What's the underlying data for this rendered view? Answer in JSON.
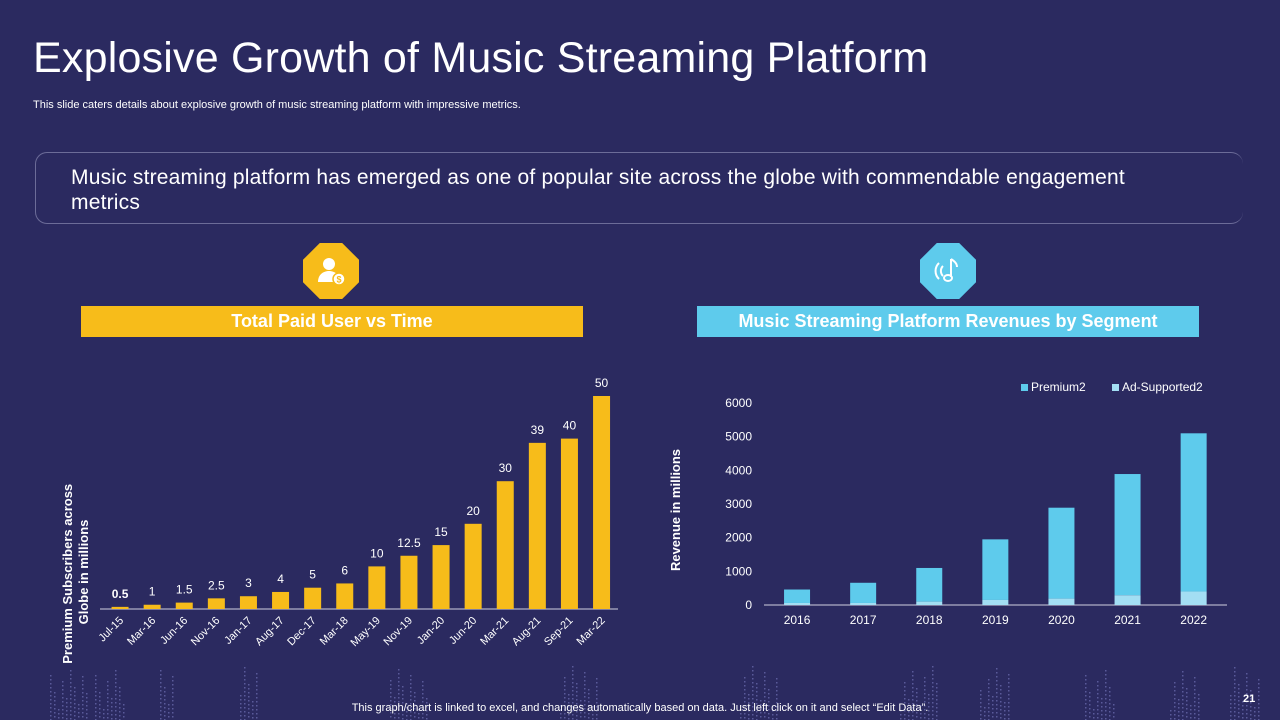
{
  "slide": {
    "title": "Explosive Growth of Music Streaming Platform",
    "subtitle": "This slide caters details about explosive growth of music streaming platform with impressive metrics.",
    "callout": "Music streaming platform has emerged as one of popular site across the globe with commendable engagement metrics",
    "footer": "This graph/chart is linked to excel, and changes automatically based on data. Just left click on it and select “Edit Data”.",
    "page_number": "21"
  },
  "icons": {
    "left": "paid-user-icon",
    "right": "music-note-icon"
  },
  "colors": {
    "background": "#2b2a60",
    "yellow": "#f7bc1a",
    "cyan": "#5ecbec",
    "light_cyan": "#a3def3"
  },
  "chart_data": [
    {
      "type": "bar",
      "title": "Total Paid User vs Time",
      "xlabel": "",
      "ylabel": "Premium Subscribers across Globe in millions",
      "categories": [
        "Jul-15",
        "Mar-16",
        "Jun-16",
        "Nov-16",
        "Jan-17",
        "Aug-17",
        "Dec-17",
        "Mar-18",
        "May-19",
        "Nov-19",
        "Jan-20",
        "Jun-20",
        "Mar-21",
        "Aug-21",
        "Sep-21",
        "Mar-22"
      ],
      "values": [
        0.5,
        1,
        1.5,
        2.5,
        3,
        4,
        5,
        6,
        10,
        12.5,
        15,
        20,
        30,
        39,
        40,
        50
      ],
      "value_labels": [
        "0.5",
        "1",
        "1.5",
        "2.5",
        "3",
        "4",
        "5",
        "6",
        "10",
        "12.5",
        "15",
        "20",
        "30",
        "39",
        "40",
        "50"
      ],
      "ylim": [
        0,
        50
      ]
    },
    {
      "type": "bar",
      "stacked": true,
      "title": "Music Streaming Platform Revenues by Segment",
      "xlabel": "",
      "ylabel": "Revenue in millions",
      "categories": [
        "2016",
        "2017",
        "2018",
        "2019",
        "2020",
        "2021",
        "2022"
      ],
      "series": [
        {
          "name": "Premium2",
          "values": [
            400,
            600,
            1000,
            1800,
            2700,
            3600,
            4700
          ]
        },
        {
          "name": "Ad-Supported2",
          "values": [
            60,
            60,
            100,
            150,
            190,
            290,
            400
          ]
        }
      ],
      "yticks": [
        "0",
        "1000",
        "2000",
        "3000",
        "4000",
        "5000",
        "6000"
      ],
      "ylim": [
        0,
        6000
      ],
      "legend": "top-right"
    }
  ]
}
